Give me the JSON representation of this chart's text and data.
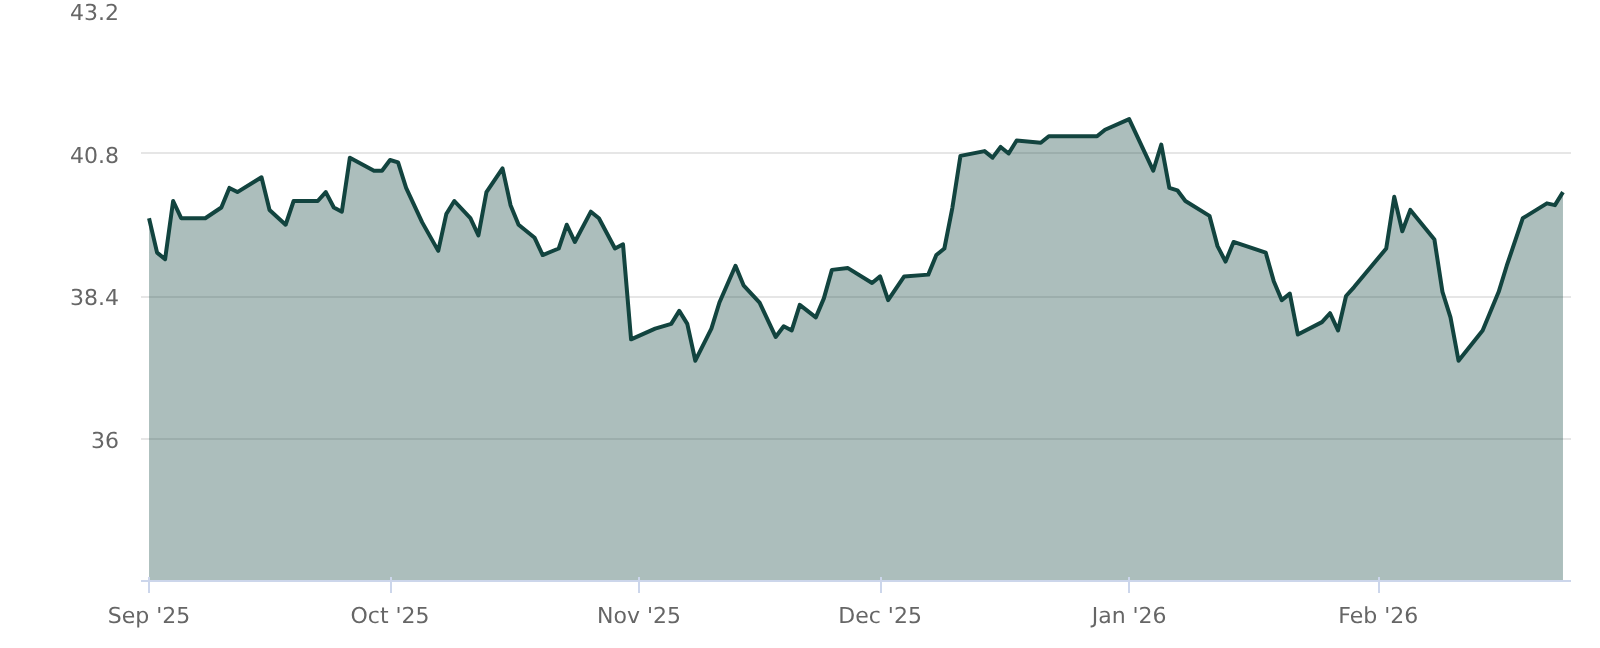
{
  "chart_data": {
    "type": "area",
    "x": [
      "2025-09-01",
      "2025-09-02",
      "2025-09-03",
      "2025-09-04",
      "2025-09-05",
      "2025-09-08",
      "2025-09-10",
      "2025-09-11",
      "2025-09-12",
      "2025-09-15",
      "2025-09-16",
      "2025-09-18",
      "2025-09-19",
      "2025-09-22",
      "2025-09-23",
      "2025-09-24",
      "2025-09-25",
      "2025-09-26",
      "2025-09-29",
      "2025-09-30",
      "2025-10-01",
      "2025-10-02",
      "2025-10-03",
      "2025-10-05",
      "2025-10-07",
      "2025-10-08",
      "2025-10-09",
      "2025-10-11",
      "2025-10-12",
      "2025-10-13",
      "2025-10-15",
      "2025-10-16",
      "2025-10-17",
      "2025-10-19",
      "2025-10-20",
      "2025-10-22",
      "2025-10-23",
      "2025-10-24",
      "2025-10-26",
      "2025-10-27",
      "2025-10-29",
      "2025-10-30",
      "2025-10-31",
      "2025-11-03",
      "2025-11-05",
      "2025-11-06",
      "2025-11-07",
      "2025-11-08",
      "2025-11-10",
      "2025-11-11",
      "2025-11-13",
      "2025-11-14",
      "2025-11-16",
      "2025-11-18",
      "2025-11-19",
      "2025-11-20",
      "2025-11-21",
      "2025-11-23",
      "2025-11-24",
      "2025-11-25",
      "2025-11-27",
      "2025-11-30",
      "2025-12-01",
      "2025-12-02",
      "2025-12-04",
      "2025-12-07",
      "2025-12-08",
      "2025-12-09",
      "2025-12-10",
      "2025-12-11",
      "2025-12-14",
      "2025-12-15",
      "2025-12-16",
      "2025-12-17",
      "2025-12-18",
      "2025-12-21",
      "2025-12-22",
      "2025-12-28",
      "2025-12-29",
      "2026-01-01",
      "2026-01-04",
      "2026-01-05",
      "2026-01-06",
      "2026-01-07",
      "2026-01-08",
      "2026-01-11",
      "2026-01-12",
      "2026-01-13",
      "2026-01-14",
      "2026-01-18",
      "2026-01-19",
      "2026-01-20",
      "2026-01-21",
      "2026-01-22",
      "2026-01-25",
      "2026-01-26",
      "2026-01-27",
      "2026-01-28",
      "2026-01-29",
      "2026-02-02",
      "2026-02-03",
      "2026-02-04",
      "2026-02-05",
      "2026-02-08",
      "2026-02-09",
      "2026-02-10",
      "2026-02-11",
      "2026-02-14",
      "2026-02-16",
      "2026-02-17",
      "2026-02-19",
      "2026-02-22",
      "2026-02-23",
      "2026-02-24"
    ],
    "series": [
      {
        "color": "#12443f",
        "values": [
          39.71,
          39.13,
          39.02,
          40.0,
          39.71,
          39.71,
          39.89,
          40.22,
          40.15,
          40.4,
          39.85,
          39.6,
          40.0,
          40.0,
          40.15,
          39.89,
          39.82,
          40.73,
          40.51,
          40.51,
          40.69,
          40.65,
          40.22,
          39.64,
          39.16,
          39.78,
          40.0,
          39.71,
          39.42,
          40.15,
          40.55,
          39.93,
          39.6,
          39.38,
          39.09,
          39.2,
          39.6,
          39.31,
          39.82,
          39.71,
          39.2,
          39.27,
          37.67,
          37.85,
          37.93,
          38.15,
          37.93,
          37.31,
          37.85,
          38.29,
          38.91,
          38.58,
          38.29,
          37.71,
          37.89,
          37.82,
          38.25,
          38.04,
          38.36,
          38.84,
          38.87,
          38.62,
          38.73,
          38.33,
          38.73,
          38.76,
          39.09,
          39.2,
          39.89,
          40.76,
          40.84,
          40.73,
          40.91,
          40.8,
          41.02,
          40.98,
          41.09,
          41.09,
          41.2,
          41.38,
          40.51,
          40.95,
          40.22,
          40.18,
          40.0,
          39.75,
          39.24,
          38.98,
          39.31,
          39.13,
          38.65,
          38.33,
          38.44,
          37.75,
          37.96,
          38.11,
          37.82,
          38.4,
          38.55,
          39.2,
          40.07,
          39.49,
          39.85,
          39.35,
          38.47,
          38.04,
          37.31,
          37.82,
          38.47,
          38.91,
          39.71,
          39.96,
          39.93,
          40.15
        ]
      }
    ],
    "xlim": [
      "2025-08-31",
      "2026-02-25"
    ],
    "xticks": [
      {
        "value": "2025-09-01",
        "label": "Sep '25"
      },
      {
        "value": "2025-10-01",
        "label": "Oct '25"
      },
      {
        "value": "2025-11-01",
        "label": "Nov '25"
      },
      {
        "value": "2025-12-01",
        "label": "Dec '25"
      },
      {
        "value": "2026-01-01",
        "label": "Jan '26"
      },
      {
        "value": "2026-02-01",
        "label": "Feb '26"
      }
    ],
    "ylim": [
      33.6,
      43.2
    ],
    "yticks": [
      36,
      38.4,
      40.8,
      43.2
    ],
    "grid": "y",
    "marker": "none",
    "line_style": "solid"
  }
}
